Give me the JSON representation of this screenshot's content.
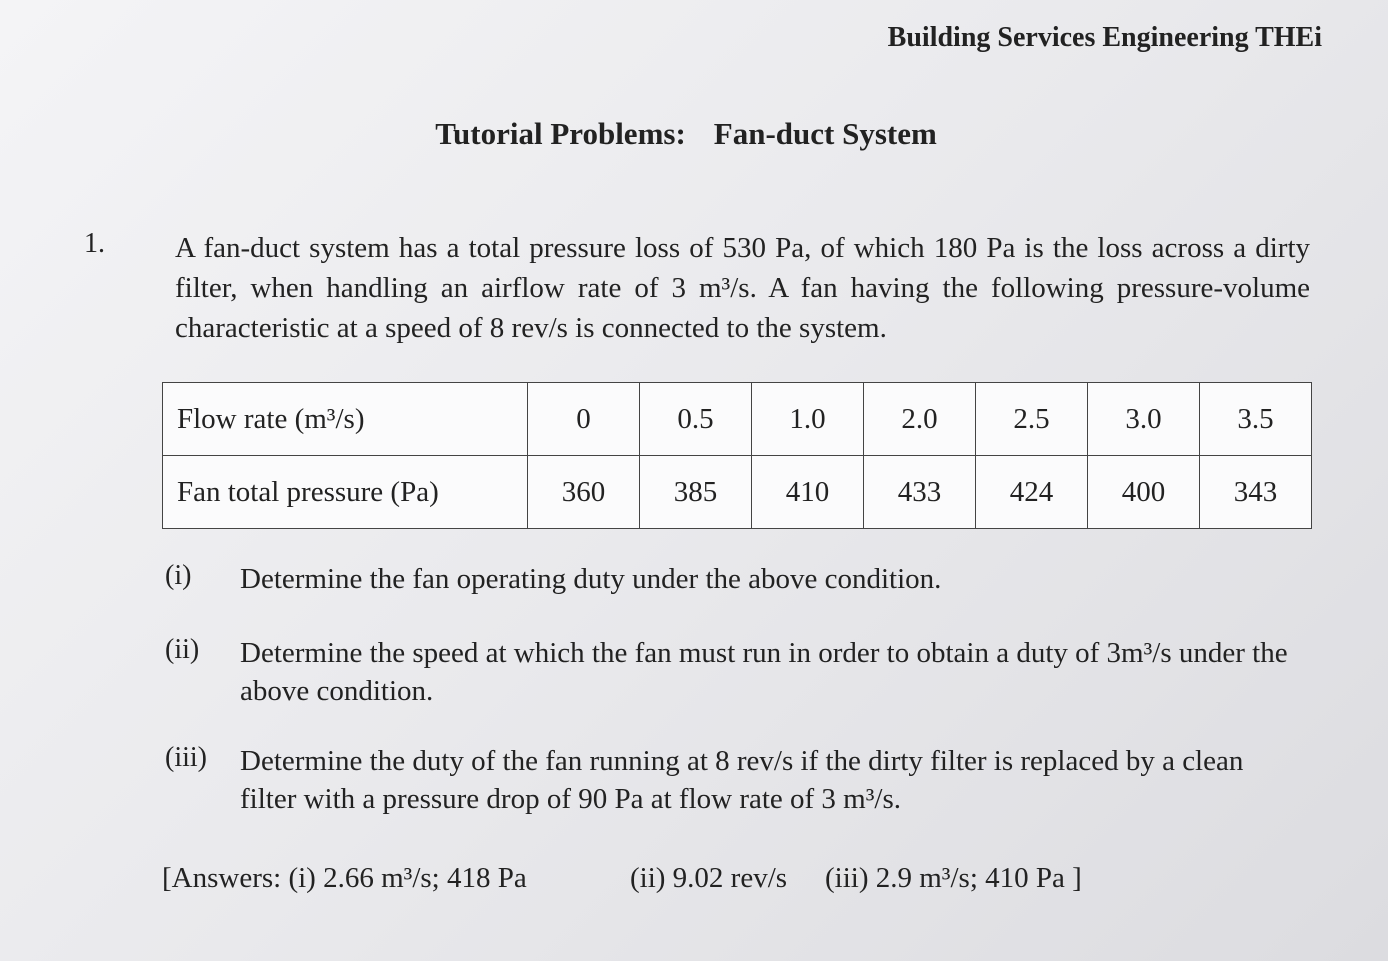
{
  "header": "Building Services Engineering THEi",
  "title": {
    "label": "Tutorial Problems:",
    "text": "Fan-duct System"
  },
  "question": {
    "number": "1.",
    "text": "A fan-duct system has a total pressure loss of 530 Pa, of which 180 Pa is the loss across a dirty filter, when handling an airflow rate of 3 m³/s. A fan having the following pressure-volume characteristic at a speed of 8 rev/s is connected to the system."
  },
  "table": {
    "rows": [
      [
        "Flow rate (m³/s)",
        "0",
        "0.5",
        "1.0",
        "2.0",
        "2.5",
        "3.0",
        "3.5"
      ],
      [
        "Fan total pressure (Pa)",
        "360",
        "385",
        "410",
        "433",
        "424",
        "400",
        "343"
      ]
    ]
  },
  "parts": [
    {
      "label": "(i)",
      "text": "Determine the fan operating duty under the above condition."
    },
    {
      "label": "(ii)",
      "text": "Determine the speed at which the fan must run in order to obtain a duty of 3m³/s under the above condition."
    },
    {
      "label": "(iii)",
      "text": "Determine the duty of the fan running at 8 rev/s if the dirty filter is replaced by a clean filter with a pressure drop of 90 Pa at flow rate of 3 m³/s."
    }
  ],
  "answers": [
    "[Answers: (i) 2.66 m³/s; 418 Pa",
    "(ii) 9.02 rev/s",
    "(iii) 2.9 m³/s; 410 Pa ]"
  ]
}
